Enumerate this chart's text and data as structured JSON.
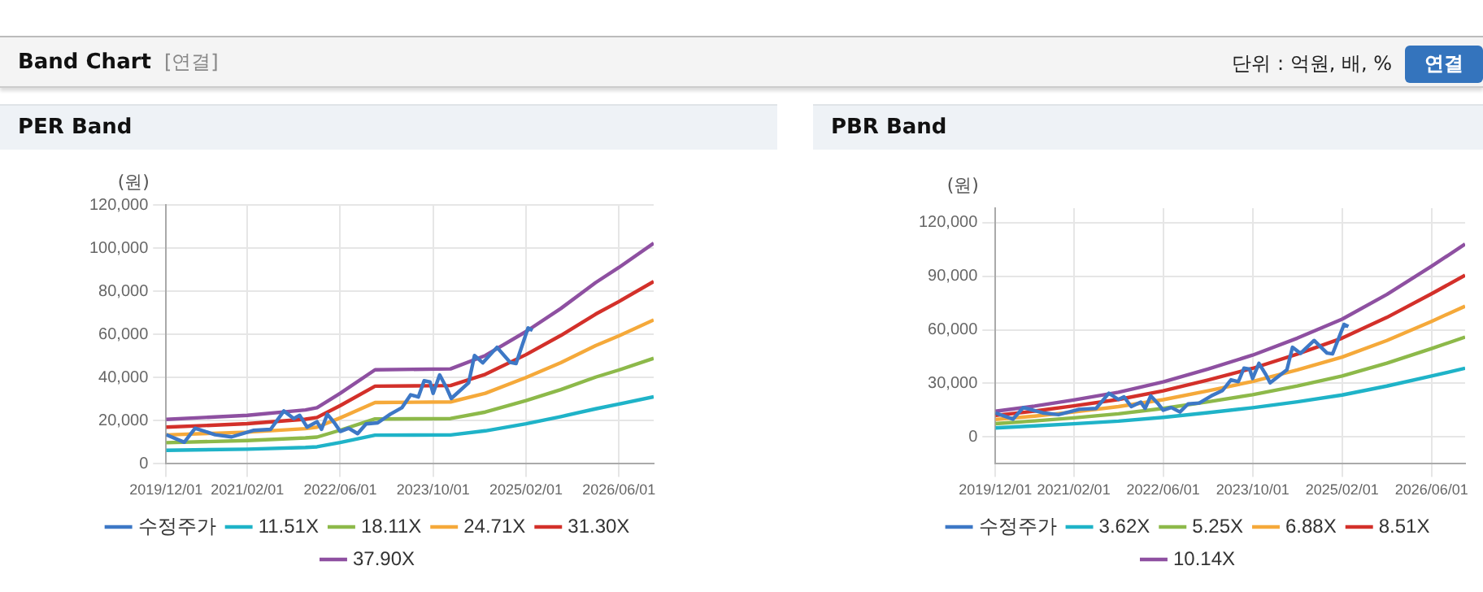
{
  "chart_data": [
    {
      "type": "other",
      "title": "Band Chart",
      "annotations": [
        "[연결]",
        "단위 : 억원, 배, %",
        "연결"
      ]
    },
    {
      "type": "line",
      "title": "PER Band",
      "ylabel": "(원)",
      "xlim": [
        "2019-12-01",
        "2026-12-01"
      ],
      "xticks": [
        {
          "value": "2019-12-01",
          "label": "2019/12/01"
        },
        {
          "value": "2021-02-01",
          "label": "2021/02/01"
        },
        {
          "value": "2022-06-01",
          "label": "2022/06/01"
        },
        {
          "value": "2023-10-01",
          "label": "2023/10/01"
        },
        {
          "value": "2025-02-01",
          "label": "2025/02/01"
        },
        {
          "value": "2026-06-01",
          "label": "2026/06/01"
        }
      ],
      "ylim": [
        0,
        120000
      ],
      "yticks": [
        0,
        {
          "value": 20000,
          "label": "20,000"
        },
        {
          "value": 40000,
          "label": "40,000"
        },
        {
          "value": 60000,
          "label": "60,000"
        },
        {
          "value": 80000,
          "label": "80,000"
        },
        {
          "value": 100000,
          "label": "100,000"
        },
        {
          "value": 120000,
          "label": "120,000"
        }
      ],
      "grid": true,
      "legend": "bottom",
      "series": [
        {
          "name": "수정주가",
          "color": "#3d78c6",
          "x": [
            "2019-12-01",
            "2020-03-05",
            "2020-05-01",
            "2020-08-15",
            "2020-11-10",
            "2021-03-01",
            "2021-06-01",
            "2021-08-10",
            "2021-10-01",
            "2021-11-01",
            "2021-12-10",
            "2022-02-01",
            "2022-02-25",
            "2022-03-25",
            "2022-05-01",
            "2022-06-01",
            "2022-07-15",
            "2022-09-01",
            "2022-10-15",
            "2022-12-15",
            "2023-02-20",
            "2023-04-20",
            "2023-06-05",
            "2023-07-15",
            "2023-08-15",
            "2023-09-15",
            "2023-10-01",
            "2023-11-05",
            "2023-12-12",
            "2024-01-05",
            "2024-04-05",
            "2024-05-05",
            "2024-06-18",
            "2024-09-01",
            "2024-11-10",
            "2024-12-10",
            "2025-02-12",
            "2025-03-05"
          ],
          "values": [
            13500,
            10000,
            16500,
            13500,
            12500,
            15500,
            16000,
            24500,
            21000,
            22500,
            17000,
            19500,
            16000,
            23000,
            19000,
            15000,
            16500,
            14000,
            18500,
            19000,
            23000,
            26000,
            32000,
            31000,
            38500,
            38000,
            32700,
            41200,
            35000,
            30300,
            37600,
            50200,
            46800,
            54000,
            47000,
            46500,
            63000,
            61800
          ]
        },
        {
          "name": "11.51X",
          "color": "#1fb3c8",
          "x": [
            "2019-12-01",
            "2021-02-01",
            "2021-12-01",
            "2022-02-01",
            "2022-06-01",
            "2022-12-01",
            "2024-01-01",
            "2024-07-01",
            "2025-02-01",
            "2025-08-01",
            "2026-02-01",
            "2026-06-01",
            "2026-12-01"
          ],
          "values": [
            6300,
            6800,
            7600,
            7900,
            9900,
            13300,
            13400,
            15300,
            18600,
            21900,
            25500,
            27700,
            31100
          ]
        },
        {
          "name": "18.11X",
          "color": "#8db94a",
          "x": [
            "2019-12-01",
            "2021-02-01",
            "2021-12-01",
            "2022-02-01",
            "2022-06-01",
            "2022-12-01",
            "2024-01-01",
            "2024-07-01",
            "2025-02-01",
            "2025-08-01",
            "2026-02-01",
            "2026-06-01",
            "2026-12-01"
          ],
          "values": [
            9800,
            10800,
            12000,
            12400,
            15600,
            20800,
            21000,
            24000,
            29300,
            34400,
            40200,
            43500,
            48900
          ]
        },
        {
          "name": "24.71X",
          "color": "#f5a93a",
          "x": [
            "2019-12-01",
            "2021-02-01",
            "2021-12-01",
            "2022-02-01",
            "2022-06-01",
            "2022-12-01",
            "2024-01-01",
            "2024-07-01",
            "2025-02-01",
            "2025-08-01",
            "2026-02-01",
            "2026-06-01",
            "2026-12-01"
          ],
          "values": [
            13400,
            14700,
            16300,
            17000,
            21300,
            28400,
            28700,
            32700,
            40000,
            46900,
            54800,
            59300,
            66700
          ]
        },
        {
          "name": "31.30X",
          "color": "#d3302a",
          "x": [
            "2019-12-01",
            "2021-02-01",
            "2021-12-01",
            "2022-02-01",
            "2022-06-01",
            "2022-12-01",
            "2024-01-01",
            "2024-07-01",
            "2025-02-01",
            "2025-08-01",
            "2026-02-01",
            "2026-06-01",
            "2026-12-01"
          ],
          "values": [
            17000,
            18600,
            20700,
            21500,
            27000,
            36000,
            36300,
            41500,
            50600,
            59500,
            69400,
            75200,
            84500
          ]
        },
        {
          "name": "37.90X",
          "color": "#8e50a1",
          "x": [
            "2019-12-01",
            "2021-02-01",
            "2021-12-01",
            "2022-02-01",
            "2022-06-01",
            "2022-12-01",
            "2024-01-01",
            "2024-07-01",
            "2025-02-01",
            "2025-08-01",
            "2026-02-01",
            "2026-06-01",
            "2026-12-01"
          ],
          "values": [
            20600,
            22500,
            25000,
            26000,
            32700,
            43600,
            44000,
            50200,
            61300,
            72000,
            84000,
            91000,
            102300
          ]
        }
      ]
    },
    {
      "type": "line",
      "title": "PBR Band",
      "ylabel": "(원)",
      "xlim": [
        "2019-12-01",
        "2026-12-01"
      ],
      "xticks": [
        {
          "value": "2019-12-01",
          "label": "2019/12/01"
        },
        {
          "value": "2021-02-01",
          "label": "2021/02/01"
        },
        {
          "value": "2022-06-01",
          "label": "2022/06/01"
        },
        {
          "value": "2023-10-01",
          "label": "2023/10/01"
        },
        {
          "value": "2025-02-01",
          "label": "2025/02/01"
        },
        {
          "value": "2026-06-01",
          "label": "2026/06/01"
        }
      ],
      "ylim": [
        -15000,
        128000
      ],
      "yticks": [
        0,
        {
          "value": 30000,
          "label": "30,000"
        },
        {
          "value": 60000,
          "label": "60,000"
        },
        {
          "value": 90000,
          "label": "90,000"
        },
        {
          "value": 120000,
          "label": "120,000"
        }
      ],
      "grid": true,
      "legend": "bottom",
      "series": [
        {
          "name": "수정주가",
          "color": "#3d78c6",
          "x": [
            "2019-12-01",
            "2020-03-05",
            "2020-05-01",
            "2020-08-15",
            "2020-11-10",
            "2021-03-01",
            "2021-06-01",
            "2021-08-10",
            "2021-10-01",
            "2021-11-01",
            "2021-12-10",
            "2022-02-01",
            "2022-02-25",
            "2022-03-25",
            "2022-05-01",
            "2022-06-01",
            "2022-07-15",
            "2022-09-01",
            "2022-10-15",
            "2022-12-15",
            "2023-02-20",
            "2023-04-20",
            "2023-06-05",
            "2023-07-15",
            "2023-08-15",
            "2023-09-15",
            "2023-10-01",
            "2023-11-05",
            "2023-12-12",
            "2024-01-05",
            "2024-04-05",
            "2024-05-05",
            "2024-06-18",
            "2024-09-01",
            "2024-11-10",
            "2024-12-10",
            "2025-02-12",
            "2025-03-05"
          ],
          "values": [
            13500,
            10000,
            16500,
            13500,
            12500,
            15500,
            16000,
            24500,
            21000,
            22500,
            17000,
            19500,
            16000,
            23000,
            19000,
            15000,
            16500,
            14000,
            18500,
            19000,
            23000,
            26000,
            32000,
            31000,
            38500,
            38000,
            32700,
            41200,
            35000,
            30300,
            37600,
            50200,
            46800,
            54000,
            47000,
            46500,
            63000,
            61800
          ]
        },
        {
          "name": "3.62X",
          "color": "#1fb3c8",
          "x": [
            "2019-12-01",
            "2020-07-01",
            "2021-02-01",
            "2021-10-01",
            "2022-06-01",
            "2023-02-01",
            "2023-10-01",
            "2024-06-01",
            "2025-02-01",
            "2025-10-01",
            "2026-06-01",
            "2026-12-01"
          ],
          "values": [
            5100,
            6200,
            7400,
            8900,
            11000,
            13600,
            16400,
            19700,
            23500,
            28500,
            34100,
            38500
          ]
        },
        {
          "name": "5.25X",
          "color": "#8db94a",
          "x": [
            "2019-12-01",
            "2020-07-01",
            "2021-02-01",
            "2021-10-01",
            "2022-06-01",
            "2023-02-01",
            "2023-10-01",
            "2024-06-01",
            "2025-02-01",
            "2025-10-01",
            "2026-06-01",
            "2026-12-01"
          ],
          "values": [
            7500,
            9000,
            10700,
            13000,
            16000,
            19700,
            23700,
            28600,
            34100,
            41300,
            49500,
            55900
          ]
        },
        {
          "name": "6.88X",
          "color": "#f5a93a",
          "x": [
            "2019-12-01",
            "2020-07-01",
            "2021-02-01",
            "2021-10-01",
            "2022-06-01",
            "2023-02-01",
            "2023-10-01",
            "2024-06-01",
            "2025-02-01",
            "2025-10-01",
            "2026-06-01",
            "2026-12-01"
          ],
          "values": [
            9800,
            11700,
            14000,
            17000,
            20900,
            25800,
            31100,
            37500,
            44700,
            54000,
            64700,
            73200
          ]
        },
        {
          "name": "8.51X",
          "color": "#d3302a",
          "x": [
            "2019-12-01",
            "2020-07-01",
            "2021-02-01",
            "2021-10-01",
            "2022-06-01",
            "2023-02-01",
            "2023-10-01",
            "2024-06-01",
            "2025-02-01",
            "2025-10-01",
            "2026-06-01",
            "2026-12-01"
          ],
          "values": [
            12100,
            14500,
            17400,
            21000,
            25800,
            31900,
            38400,
            46400,
            55300,
            66900,
            80100,
            90500
          ]
        },
        {
          "name": "10.14X",
          "color": "#8e50a1",
          "x": [
            "2019-12-01",
            "2020-07-01",
            "2021-02-01",
            "2021-10-01",
            "2022-06-01",
            "2023-02-01",
            "2023-10-01",
            "2024-06-01",
            "2025-02-01",
            "2025-10-01",
            "2026-06-01",
            "2026-12-01"
          ],
          "values": [
            14400,
            17300,
            20700,
            25000,
            30800,
            38000,
            45800,
            55300,
            65900,
            79700,
            95500,
            107900
          ]
        }
      ]
    }
  ]
}
